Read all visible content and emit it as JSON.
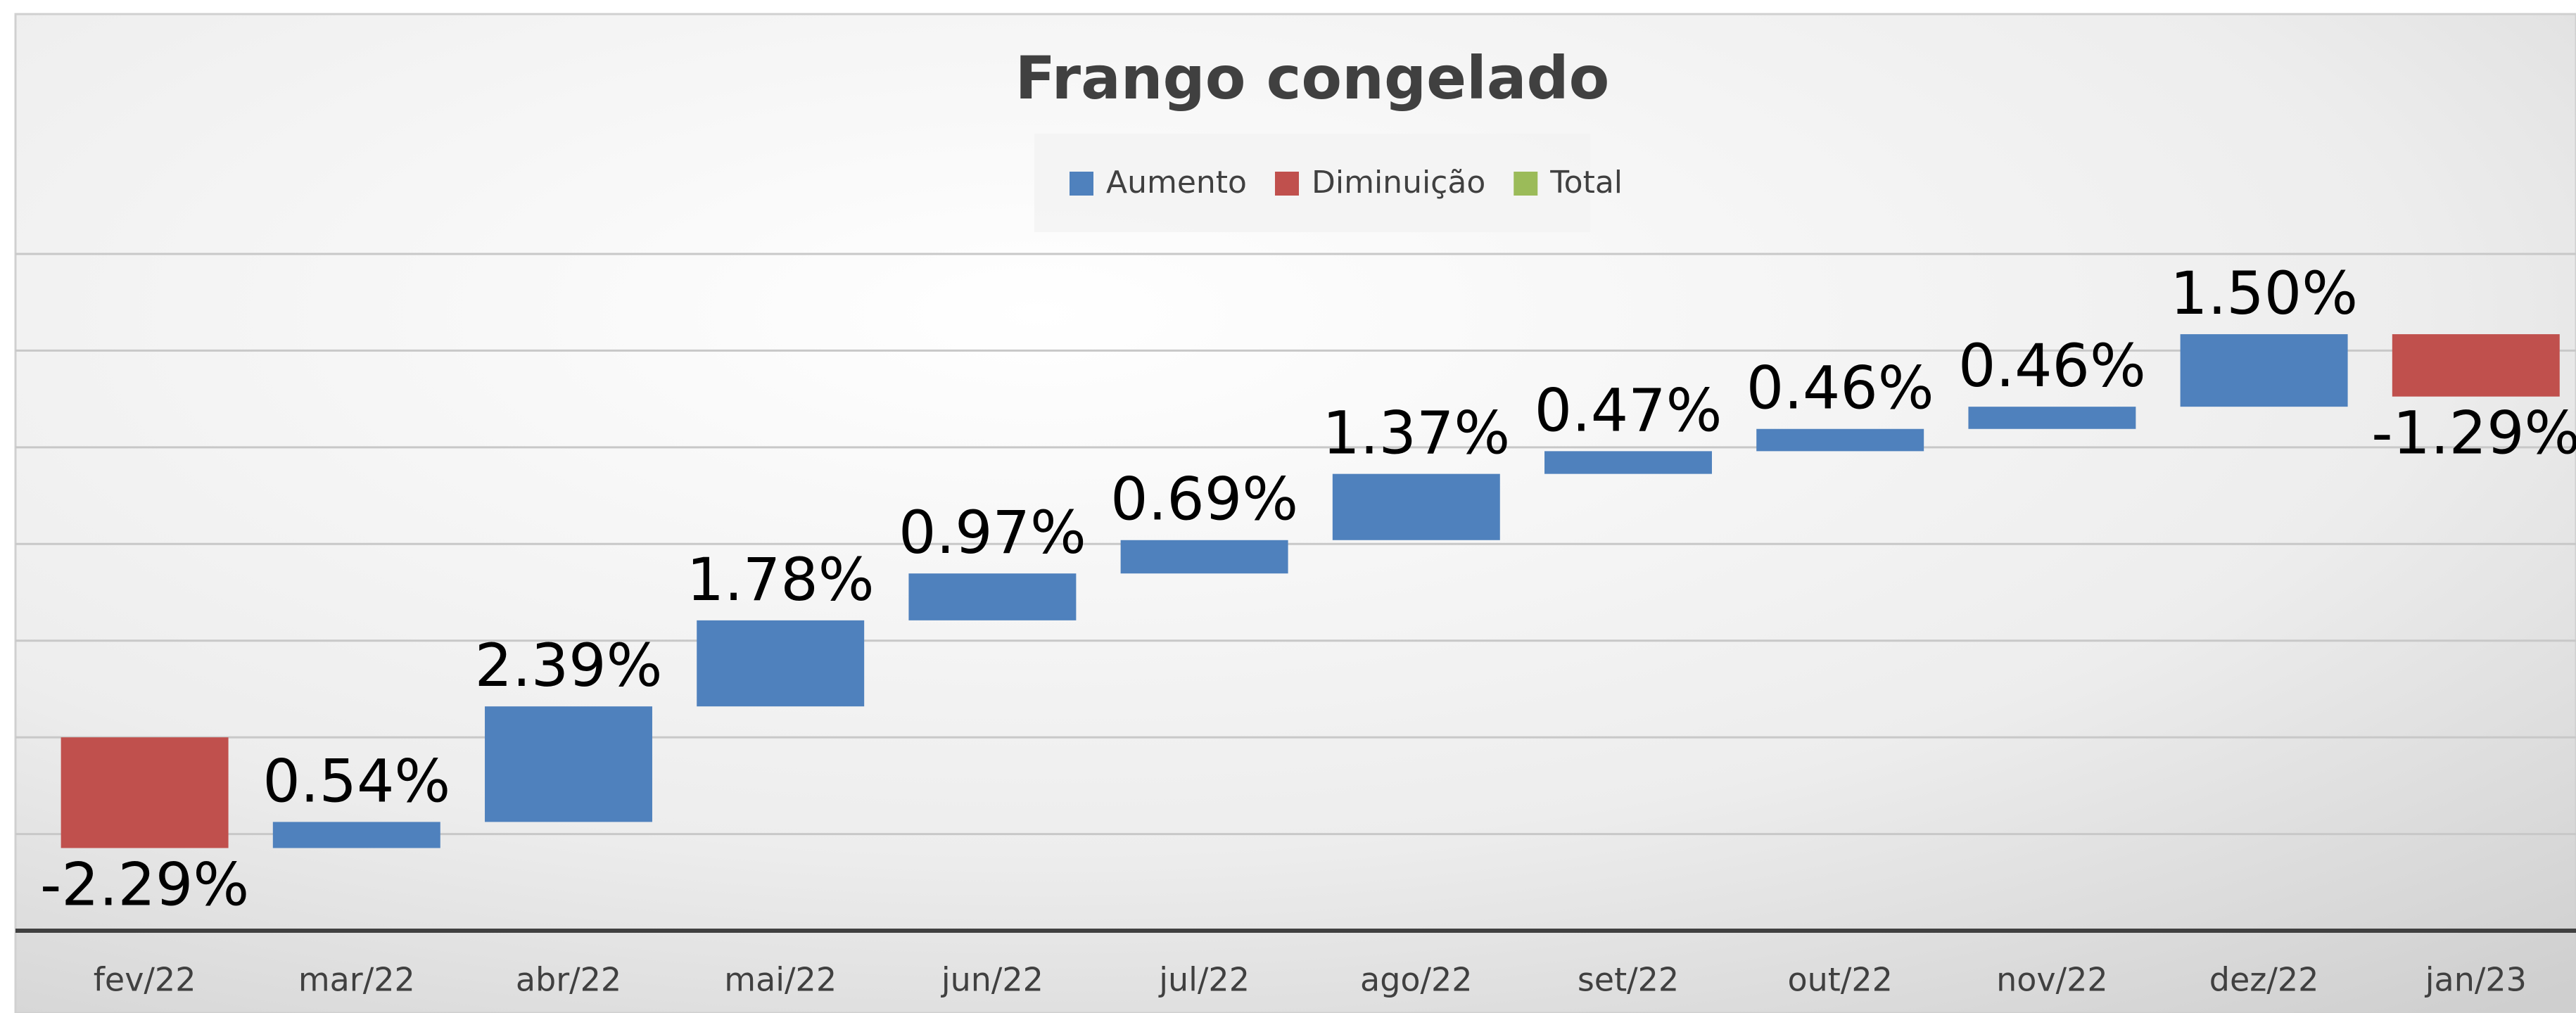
{
  "chart_data": {
    "type": "waterfall",
    "title": "Frango congelado",
    "legend": [
      {
        "name": "Aumento",
        "color": "#4f81bd"
      },
      {
        "name": "Diminuição",
        "color": "#c0504d"
      },
      {
        "name": "Total",
        "color": "#9bbb59"
      }
    ],
    "categories": [
      "fev/22",
      "mar/22",
      "abr/22",
      "mai/22",
      "jun/22",
      "jul/22",
      "ago/22",
      "set/22",
      "out/22",
      "nov/22",
      "dez/22",
      "jan/23"
    ],
    "values": [
      -2.29,
      0.54,
      2.39,
      1.78,
      0.97,
      0.69,
      1.37,
      0.47,
      0.46,
      0.46,
      1.5,
      -1.29
    ],
    "value_labels": [
      "-2.29%",
      "0.54%",
      "2.39%",
      "1.78%",
      "0.97%",
      "0.69%",
      "1.37%",
      "0.47%",
      "0.46%",
      "0.46%",
      "1.50%",
      "-1.29%"
    ],
    "ylim": [
      -4,
      10
    ],
    "yticks": [
      -4,
      -2,
      0,
      2,
      4,
      6,
      8,
      10
    ],
    "grid": true
  }
}
